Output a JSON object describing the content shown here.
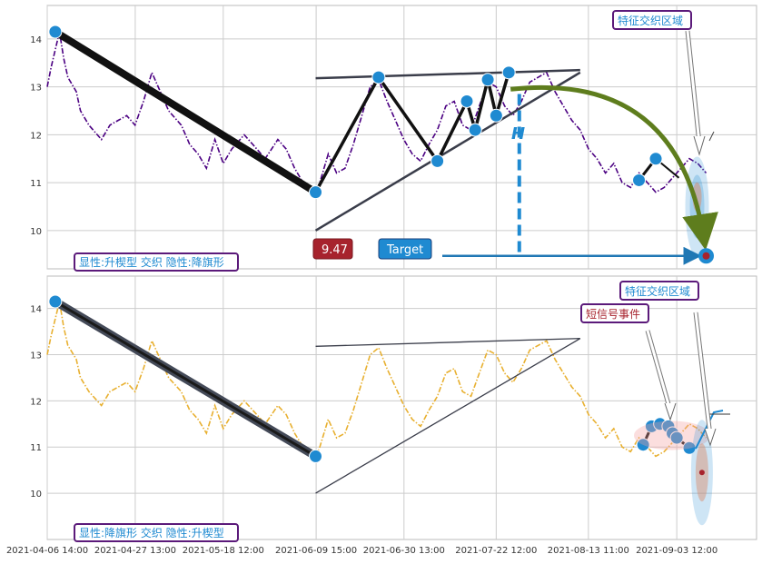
{
  "chart_data": [
    {
      "type": "line",
      "panel": "top",
      "ylim": [
        9.2,
        14.7
      ],
      "yticks": [
        10,
        11,
        12,
        13,
        14
      ],
      "grid": true,
      "x_range": [
        "2021-04-06 14:00",
        "2021-09-22 12:00"
      ],
      "series": [
        {
          "color": "#4b0082",
          "style": "dash-dot",
          "x": [
            "2021-04-06 14:00",
            "2021-04-07 12:00",
            "2021-04-09 12:00",
            "2021-04-10 12:00",
            "2021-04-11 12:00",
            "2021-04-13 12:00",
            "2021-04-14 12:00",
            "2021-04-16 12:00",
            "2021-04-19 12:00",
            "2021-04-21 12:00",
            "2021-04-23 12:00",
            "2021-04-25 12:00",
            "2021-04-27 12:00",
            "2021-04-29 12:00",
            "2021-05-01 12:00",
            "2021-05-03 12:00",
            "2021-05-05 12:00",
            "2021-05-08 12:00",
            "2021-05-10 12:00",
            "2021-05-12 12:00",
            "2021-05-14 12:00",
            "2021-05-16 12:00",
            "2021-05-18 12:00",
            "2021-05-20 12:00",
            "2021-05-23 12:00",
            "2021-05-25 12:00",
            "2021-05-28 12:00",
            "2021-05-31 12:00",
            "2021-06-02 12:00",
            "2021-06-04 12:00",
            "2021-06-06 12:00",
            "2021-06-08 12:00",
            "2021-06-09 12:00",
            "2021-06-10 12:00",
            "2021-06-12 12:00",
            "2021-06-14 12:00",
            "2021-06-16 12:00",
            "2021-06-18 12:00",
            "2021-06-20 12:00",
            "2021-06-22 12:00",
            "2021-06-24 12:00",
            "2021-06-26 12:00",
            "2021-06-28 12:00",
            "2021-06-30 12:00",
            "2021-07-02 12:00",
            "2021-07-04 12:00",
            "2021-07-06 12:00",
            "2021-07-08 12:00",
            "2021-07-10 12:00",
            "2021-07-12 12:00",
            "2021-07-14 12:00",
            "2021-07-16 12:00",
            "2021-07-18 12:00",
            "2021-07-20 12:00",
            "2021-07-22 12:00",
            "2021-07-24 12:00",
            "2021-07-26 12:00",
            "2021-07-28 12:00",
            "2021-07-30 12:00",
            "2021-08-01 12:00",
            "2021-08-03 12:00",
            "2021-08-05 12:00",
            "2021-08-07 12:00",
            "2021-08-09 12:00",
            "2021-08-11 12:00",
            "2021-08-13 12:00",
            "2021-08-15 12:00",
            "2021-08-17 12:00",
            "2021-08-19 12:00",
            "2021-08-21 12:00",
            "2021-08-23 12:00",
            "2021-08-25 12:00",
            "2021-08-27 12:00",
            "2021-08-29 12:00",
            "2021-08-31 12:00",
            "2021-09-02 12:00",
            "2021-09-04 12:00",
            "2021-09-06 12:00",
            "2021-09-08 12:00",
            "2021-09-10 12:00"
          ],
          "values": [
            13.0,
            13.4,
            14.15,
            13.6,
            13.2,
            12.9,
            12.5,
            12.2,
            11.9,
            12.2,
            12.3,
            12.4,
            12.2,
            12.7,
            13.3,
            12.9,
            12.5,
            12.2,
            11.8,
            11.6,
            11.3,
            11.9,
            11.4,
            11.7,
            12.0,
            11.8,
            11.5,
            11.9,
            11.7,
            11.3,
            11.0,
            10.9,
            10.8,
            11.0,
            11.6,
            11.2,
            11.3,
            11.8,
            12.4,
            13.0,
            13.15,
            12.7,
            12.3,
            11.9,
            11.6,
            11.45,
            11.8,
            12.1,
            12.6,
            12.7,
            12.2,
            12.1,
            12.6,
            13.1,
            13.0,
            12.6,
            12.4,
            12.7,
            13.1,
            13.2,
            13.3,
            12.9,
            12.6,
            12.3,
            12.1,
            11.7,
            11.5,
            11.2,
            11.4,
            11.0,
            10.9,
            11.2,
            11.0,
            10.8,
            10.9,
            11.1,
            11.3,
            11.5,
            11.4,
            11.2
          ]
        }
      ],
      "pattern": {
        "pivots_x": [
          "2021-04-08 12:00",
          "2021-06-09 12:00",
          "2021-06-24 12:00",
          "2021-07-08 12:00",
          "2021-07-15 12:00",
          "2021-07-17 12:00",
          "2021-07-20 12:00",
          "2021-07-22 12:00",
          "2021-07-25 12:00"
        ],
        "pivots_y": [
          14.15,
          10.8,
          13.2,
          11.45,
          12.7,
          12.1,
          13.15,
          12.4,
          13.3
        ],
        "upper_line": {
          "x": [
            "2021-06-09 12:00",
            "2021-08-11 12:00"
          ],
          "y": [
            13.18,
            13.35
          ]
        },
        "lower_line": {
          "x": [
            "2021-06-09 12:00",
            "2021-08-11 12:00"
          ],
          "y": [
            10.0,
            13.3
          ]
        },
        "extra_points": [
          {
            "x": "2021-08-25 12:00",
            "y": 11.05
          },
          {
            "x": "2021-08-29 12:00",
            "y": 11.5
          }
        ],
        "target_point": {
          "x": "2021-09-10 12:00",
          "y": 9.47
        }
      },
      "annotations": {
        "pattern_label": "显性:升楔型 交织 隐性:降旗形",
        "zone_label": "特征交织区域",
        "h_label": "H",
        "value_label": "9.47",
        "target_label": "Target"
      }
    },
    {
      "type": "line",
      "panel": "bottom",
      "ylim": [
        9.0,
        14.7
      ],
      "yticks": [
        10,
        11,
        12,
        13,
        14
      ],
      "grid": true,
      "x_range": [
        "2021-04-06 14:00",
        "2021-09-22 12:00"
      ],
      "xticks": [
        "2021-04-06 14:00",
        "2021-04-27 13:00",
        "2021-05-18 12:00",
        "2021-06-09 15:00",
        "2021-06-30 13:00",
        "2021-07-22 12:00",
        "2021-08-13 11:00",
        "2021-09-03 12:00"
      ],
      "series": [
        {
          "color": "#e8b030",
          "style": "dash-dot",
          "x": [
            "2021-04-06 14:00",
            "2021-04-07 12:00",
            "2021-04-09 12:00",
            "2021-04-10 12:00",
            "2021-04-11 12:00",
            "2021-04-13 12:00",
            "2021-04-14 12:00",
            "2021-04-16 12:00",
            "2021-04-19 12:00",
            "2021-04-21 12:00",
            "2021-04-23 12:00",
            "2021-04-25 12:00",
            "2021-04-27 12:00",
            "2021-04-29 12:00",
            "2021-05-01 12:00",
            "2021-05-03 12:00",
            "2021-05-05 12:00",
            "2021-05-08 12:00",
            "2021-05-10 12:00",
            "2021-05-12 12:00",
            "2021-05-14 12:00",
            "2021-05-16 12:00",
            "2021-05-18 12:00",
            "2021-05-20 12:00",
            "2021-05-23 12:00",
            "2021-05-25 12:00",
            "2021-05-28 12:00",
            "2021-05-31 12:00",
            "2021-06-02 12:00",
            "2021-06-04 12:00",
            "2021-06-06 12:00",
            "2021-06-08 12:00",
            "2021-06-09 12:00",
            "2021-06-10 12:00",
            "2021-06-12 12:00",
            "2021-06-14 12:00",
            "2021-06-16 12:00",
            "2021-06-18 12:00",
            "2021-06-20 12:00",
            "2021-06-22 12:00",
            "2021-06-24 12:00",
            "2021-06-26 12:00",
            "2021-06-28 12:00",
            "2021-06-30 12:00",
            "2021-07-02 12:00",
            "2021-07-04 12:00",
            "2021-07-06 12:00",
            "2021-07-08 12:00",
            "2021-07-10 12:00",
            "2021-07-12 12:00",
            "2021-07-14 12:00",
            "2021-07-16 12:00",
            "2021-07-18 12:00",
            "2021-07-20 12:00",
            "2021-07-22 12:00",
            "2021-07-24 12:00",
            "2021-07-26 12:00",
            "2021-07-28 12:00",
            "2021-07-30 12:00",
            "2021-08-01 12:00",
            "2021-08-03 12:00",
            "2021-08-05 12:00",
            "2021-08-07 12:00",
            "2021-08-09 12:00",
            "2021-08-11 12:00",
            "2021-08-13 12:00",
            "2021-08-15 12:00",
            "2021-08-17 12:00",
            "2021-08-19 12:00",
            "2021-08-21 12:00",
            "2021-08-23 12:00",
            "2021-08-25 12:00",
            "2021-08-27 12:00",
            "2021-08-29 12:00",
            "2021-08-31 12:00",
            "2021-09-02 12:00",
            "2021-09-04 12:00",
            "2021-09-06 12:00",
            "2021-09-08 12:00",
            "2021-09-10 12:00"
          ],
          "values": [
            13.0,
            13.4,
            14.15,
            13.6,
            13.2,
            12.9,
            12.5,
            12.2,
            11.9,
            12.2,
            12.3,
            12.4,
            12.2,
            12.7,
            13.3,
            12.9,
            12.5,
            12.2,
            11.8,
            11.6,
            11.3,
            11.9,
            11.4,
            11.7,
            12.0,
            11.8,
            11.5,
            11.9,
            11.7,
            11.3,
            11.0,
            10.9,
            10.8,
            11.0,
            11.6,
            11.2,
            11.3,
            11.8,
            12.4,
            13.0,
            13.15,
            12.7,
            12.3,
            11.9,
            11.6,
            11.45,
            11.8,
            12.1,
            12.6,
            12.7,
            12.2,
            12.1,
            12.6,
            13.1,
            13.0,
            12.6,
            12.4,
            12.7,
            13.1,
            13.2,
            13.3,
            12.9,
            12.6,
            12.3,
            12.1,
            11.7,
            11.5,
            11.2,
            11.4,
            11.0,
            10.9,
            11.2,
            11.0,
            10.8,
            10.9,
            11.1,
            11.3,
            11.5,
            11.4,
            11.2
          ]
        }
      ],
      "pattern": {
        "pivots_x": [
          "2021-04-08 12:00",
          "2021-06-09 12:00"
        ],
        "pivots_y": [
          14.15,
          10.8
        ],
        "upper_line": {
          "x": [
            "2021-06-09 12:00",
            "2021-08-11 12:00"
          ],
          "y": [
            13.18,
            13.35
          ]
        },
        "lower_line": {
          "x": [
            "2021-06-09 12:00",
            "2021-08-11 12:00"
          ],
          "y": [
            10.0,
            13.35
          ]
        },
        "cluster_points": [
          {
            "x": "2021-08-26 12:00",
            "y": 11.05
          },
          {
            "x": "2021-08-28 12:00",
            "y": 11.45
          },
          {
            "x": "2021-08-30 12:00",
            "y": 11.5
          },
          {
            "x": "2021-09-01 12:00",
            "y": 11.45
          },
          {
            "x": "2021-09-02 12:00",
            "y": 11.3
          },
          {
            "x": "2021-09-03 12:00",
            "y": 11.2
          },
          {
            "x": "2021-09-06 12:00",
            "y": 10.98
          }
        ],
        "target_point": {
          "x": "2021-09-09 12:00",
          "y": 10.45
        }
      },
      "annotations": {
        "pattern_label": "显性:降旗形 交织 隐性:升楔型",
        "zone_label": "特征交织区域",
        "signal_label": "短信号事件"
      }
    }
  ],
  "colors": {
    "grid": "#cccccc",
    "pattern_line": "#1f1f1f",
    "channel_line": "#3a3d4a",
    "pivot_marker": "#1f8ad1",
    "target_box": "#1f8ad1",
    "value_box": "#a7232d",
    "arrow_green": "#6b8e23",
    "label_border": "#5b1a7a",
    "label_text": "#1f8ad1",
    "signal_text": "#a7232d"
  }
}
